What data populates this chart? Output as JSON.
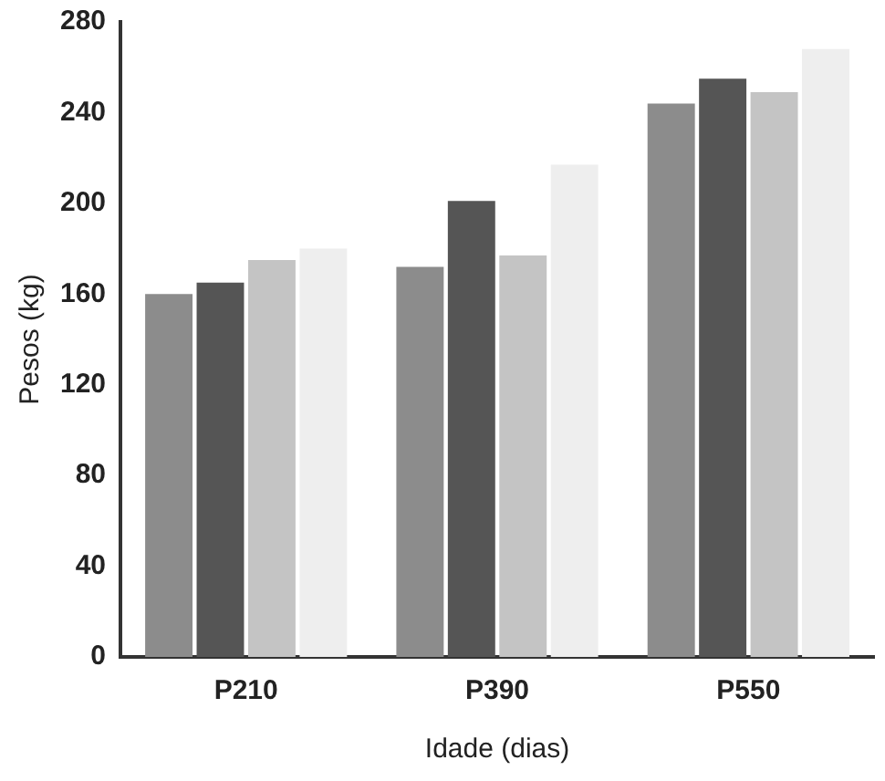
{
  "chart_data": {
    "type": "bar",
    "xlabel": "Idade (dias)",
    "ylabel": "Pesos (kg)",
    "categories": [
      "P210",
      "P390",
      "P550"
    ],
    "series": [
      {
        "color": "#8c8c8c",
        "values": [
          160,
          172,
          244
        ]
      },
      {
        "color": "#555555",
        "values": [
          165,
          201,
          255
        ]
      },
      {
        "color": "#c4c4c4",
        "values": [
          175,
          177,
          249
        ]
      },
      {
        "color": "#eeeeee",
        "values": [
          180,
          217,
          268
        ]
      }
    ],
    "ylim": [
      0,
      280
    ],
    "yticks": [
      0,
      40,
      80,
      120,
      160,
      200,
      240,
      280
    ],
    "grid": false,
    "legend": false
  }
}
